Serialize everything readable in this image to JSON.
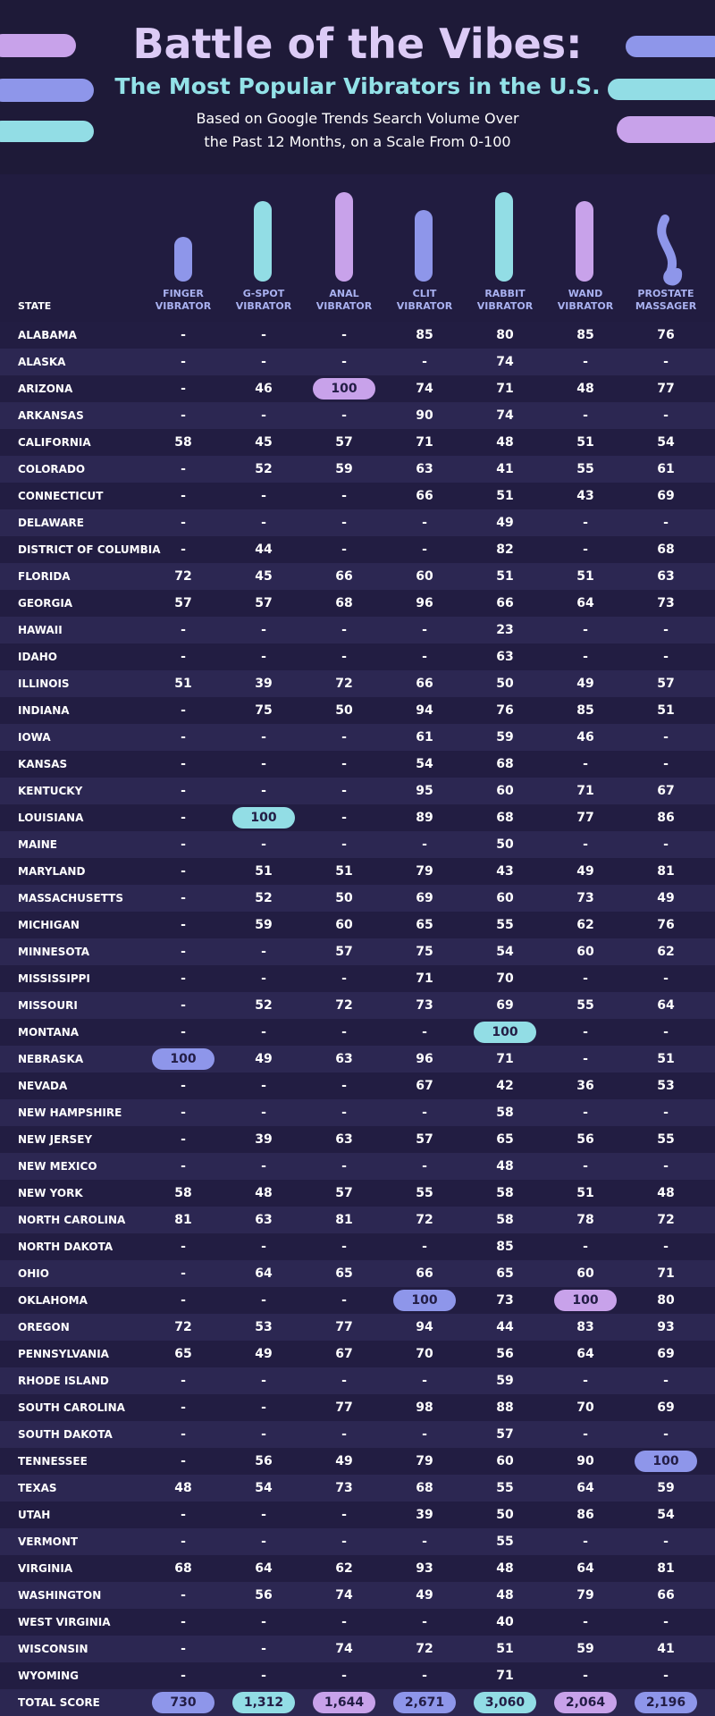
{
  "header": {
    "title": "Battle of the Vibes:",
    "subtitle": "The Most Popular Vibrators in the U.S.",
    "description": "Based on Google Trends Search Volume Over the Past 12 Months, on a Scale From 0-100"
  },
  "table": {
    "columns": [
      "STATE",
      "FINGER VIBRATOR",
      "G-SPOT VIBRATOR",
      "ANAL VIBRATOR",
      "CLIT VIBRATOR",
      "RABBIT VIBRATOR",
      "WAND VIBRATOR",
      "PROSTATE MASSAGER"
    ],
    "column_colors": [
      "#8e96ea",
      "#92dde5",
      "#c8a2ea",
      "#8e96ea",
      "#92dde5",
      "#c8a2ea",
      "#8e96ea"
    ],
    "rows": [
      [
        "ALABAMA",
        "-",
        "-",
        "-",
        "85",
        "80",
        "85",
        "76"
      ],
      [
        "ALASKA",
        "-",
        "-",
        "-",
        "-",
        "74",
        "-",
        "-"
      ],
      [
        "ARIZONA",
        "-",
        "46",
        "100",
        "74",
        "71",
        "48",
        "77"
      ],
      [
        "ARKANSAS",
        "-",
        "-",
        "-",
        "90",
        "74",
        "-",
        "-"
      ],
      [
        "CALIFORNIA",
        "58",
        "45",
        "57",
        "71",
        "48",
        "51",
        "54"
      ],
      [
        "COLORADO",
        "-",
        "52",
        "59",
        "63",
        "41",
        "55",
        "61"
      ],
      [
        "CONNECTICUT",
        "-",
        "-",
        "-",
        "66",
        "51",
        "43",
        "69"
      ],
      [
        "DELAWARE",
        "-",
        "-",
        "-",
        "-",
        "49",
        "-",
        "-"
      ],
      [
        "DISTRICT OF COLUMBIA",
        "-",
        "44",
        "-",
        "-",
        "82",
        "-",
        "68"
      ],
      [
        "FLORIDA",
        "72",
        "45",
        "66",
        "60",
        "51",
        "51",
        "63"
      ],
      [
        "GEORGIA",
        "57",
        "57",
        "68",
        "96",
        "66",
        "64",
        "73"
      ],
      [
        "HAWAII",
        "-",
        "-",
        "-",
        "-",
        "23",
        "-",
        "-"
      ],
      [
        "IDAHO",
        "-",
        "-",
        "-",
        "-",
        "63",
        "-",
        "-"
      ],
      [
        "ILLINOIS",
        "51",
        "39",
        "72",
        "66",
        "50",
        "49",
        "57"
      ],
      [
        "INDIANA",
        "-",
        "75",
        "50",
        "94",
        "76",
        "85",
        "51"
      ],
      [
        "IOWA",
        "-",
        "-",
        "-",
        "61",
        "59",
        "46",
        "-"
      ],
      [
        "KANSAS",
        "-",
        "-",
        "-",
        "54",
        "68",
        "-",
        "-"
      ],
      [
        "KENTUCKY",
        "-",
        "-",
        "-",
        "95",
        "60",
        "71",
        "67"
      ],
      [
        "LOUISIANA",
        "-",
        "100",
        "-",
        "89",
        "68",
        "77",
        "86"
      ],
      [
        "MAINE",
        "-",
        "-",
        "-",
        "-",
        "50",
        "-",
        "-"
      ],
      [
        "MARYLAND",
        "-",
        "51",
        "51",
        "79",
        "43",
        "49",
        "81"
      ],
      [
        "MASSACHUSETTS",
        "-",
        "52",
        "50",
        "69",
        "60",
        "73",
        "49"
      ],
      [
        "MICHIGAN",
        "-",
        "59",
        "60",
        "65",
        "55",
        "62",
        "76"
      ],
      [
        "MINNESOTA",
        "-",
        "-",
        "57",
        "75",
        "54",
        "60",
        "62"
      ],
      [
        "MISSISSIPPI",
        "-",
        "-",
        "-",
        "71",
        "70",
        "-",
        "-"
      ],
      [
        "MISSOURI",
        "-",
        "52",
        "72",
        "73",
        "69",
        "55",
        "64"
      ],
      [
        "MONTANA",
        "-",
        "-",
        "-",
        "-",
        "100",
        "-",
        "-"
      ],
      [
        "NEBRASKA",
        "100",
        "49",
        "63",
        "96",
        "71",
        "-",
        "51"
      ],
      [
        "NEVADA",
        "-",
        "-",
        "-",
        "67",
        "42",
        "36",
        "53"
      ],
      [
        "NEW HAMPSHIRE",
        "-",
        "-",
        "-",
        "-",
        "58",
        "-",
        "-"
      ],
      [
        "NEW JERSEY",
        "-",
        "39",
        "63",
        "57",
        "65",
        "56",
        "55"
      ],
      [
        "NEW MEXICO",
        "-",
        "-",
        "-",
        "-",
        "48",
        "-",
        "-"
      ],
      [
        "NEW YORK",
        "58",
        "48",
        "57",
        "55",
        "58",
        "51",
        "48"
      ],
      [
        "NORTH CAROLINA",
        "81",
        "63",
        "81",
        "72",
        "58",
        "78",
        "72"
      ],
      [
        "NORTH DAKOTA",
        "-",
        "-",
        "-",
        "-",
        "85",
        "-",
        "-"
      ],
      [
        "OHIO",
        "-",
        "64",
        "65",
        "66",
        "65",
        "60",
        "71"
      ],
      [
        "OKLAHOMA",
        "-",
        "-",
        "-",
        "100",
        "73",
        "100",
        "80"
      ],
      [
        "OREGON",
        "72",
        "53",
        "77",
        "94",
        "44",
        "83",
        "93"
      ],
      [
        "PENNSYLVANIA",
        "65",
        "49",
        "67",
        "70",
        "56",
        "64",
        "69"
      ],
      [
        "RHODE ISLAND",
        "-",
        "-",
        "-",
        "-",
        "59",
        "-",
        "-"
      ],
      [
        "SOUTH CAROLINA",
        "-",
        "-",
        "77",
        "98",
        "88",
        "70",
        "69"
      ],
      [
        "SOUTH DAKOTA",
        "-",
        "-",
        "-",
        "-",
        "57",
        "-",
        "-"
      ],
      [
        "TENNESSEE",
        "-",
        "56",
        "49",
        "79",
        "60",
        "90",
        "100"
      ],
      [
        "TEXAS",
        "48",
        "54",
        "73",
        "68",
        "55",
        "64",
        "59"
      ],
      [
        "UTAH",
        "-",
        "-",
        "-",
        "39",
        "50",
        "86",
        "54"
      ],
      [
        "VERMONT",
        "-",
        "-",
        "-",
        "-",
        "55",
        "-",
        "-"
      ],
      [
        "VIRGINIA",
        "68",
        "64",
        "62",
        "93",
        "48",
        "64",
        "81"
      ],
      [
        "WASHINGTON",
        "-",
        "56",
        "74",
        "49",
        "48",
        "79",
        "66"
      ],
      [
        "WEST VIRGINIA",
        "-",
        "-",
        "-",
        "-",
        "40",
        "-",
        "-"
      ],
      [
        "WISCONSIN",
        "-",
        "-",
        "74",
        "72",
        "51",
        "59",
        "41"
      ],
      [
        "WYOMING",
        "-",
        "-",
        "-",
        "-",
        "71",
        "-",
        "-"
      ]
    ],
    "total": [
      "TOTAL SCORE",
      "730",
      "1,312",
      "1,644",
      "2,671",
      "3,060",
      "2,064",
      "2,196"
    ]
  }
}
